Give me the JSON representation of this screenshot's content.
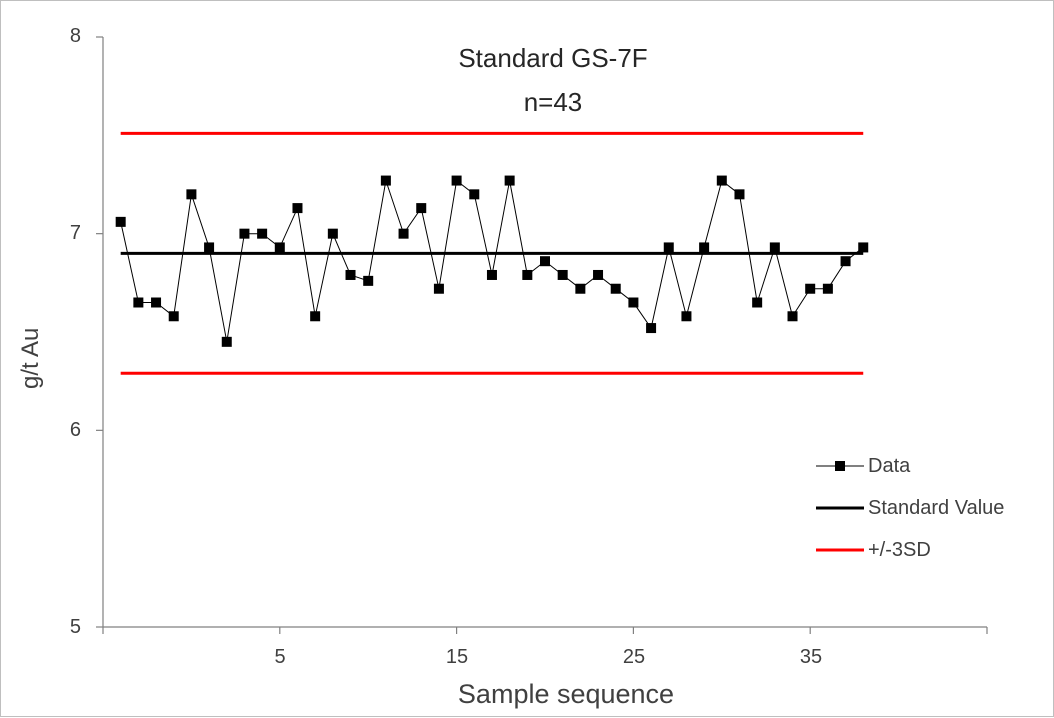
{
  "chart_data": {
    "type": "line",
    "title": "Standard GS-7F",
    "subtitle": "n=43",
    "xlabel": "Sample sequence",
    "ylabel": "g/t Au",
    "xlim": [
      0,
      50
    ],
    "ylim": [
      5,
      8
    ],
    "yticks": [
      "5",
      "6",
      "7",
      "8"
    ],
    "xticks": [
      5,
      15,
      25,
      35
    ],
    "xtick_labels": [
      "5",
      "15",
      "25",
      "35"
    ],
    "legend_position": "right",
    "grid": false,
    "series": [
      {
        "name": "Data",
        "color": "#000000",
        "marker": "square",
        "x": [
          1,
          2,
          3,
          4,
          5,
          6,
          7,
          8,
          9,
          10,
          11,
          12,
          13,
          14,
          15,
          16,
          17,
          18,
          19,
          20,
          21,
          22,
          23,
          24,
          25,
          26,
          27,
          28,
          29,
          30,
          31,
          32,
          33,
          34,
          35,
          36,
          37,
          38,
          39,
          40,
          41,
          42,
          43
        ],
        "values": [
          7.06,
          6.65,
          6.65,
          6.58,
          7.2,
          6.93,
          6.45,
          7.0,
          7.0,
          6.93,
          7.13,
          6.58,
          7.0,
          6.79,
          6.76,
          7.27,
          7.0,
          7.13,
          6.72,
          7.27,
          7.2,
          6.79,
          7.27,
          6.79,
          6.86,
          6.79,
          6.72,
          6.79,
          6.72,
          6.65,
          6.52,
          6.93,
          6.58,
          6.93,
          7.27,
          7.2,
          6.65,
          6.93,
          6.58,
          6.72,
          6.72,
          6.86,
          6.93
        ]
      },
      {
        "name": "Standard Value",
        "color": "#000000",
        "x": [
          1,
          43
        ],
        "values": [
          6.9,
          6.9
        ]
      },
      {
        "name": "+/-3SD",
        "color": "#ff0000",
        "x": [
          1,
          43
        ],
        "values": [
          7.51,
          7.51
        ]
      },
      {
        "name": "+/-3SD",
        "color": "#ff0000",
        "x": [
          1,
          43
        ],
        "values": [
          6.29,
          6.29
        ],
        "show_in_legend": false
      }
    ]
  },
  "legend": {
    "data_label": "Data",
    "standard_label": "Standard Value",
    "sd_label": "+/-3SD"
  }
}
